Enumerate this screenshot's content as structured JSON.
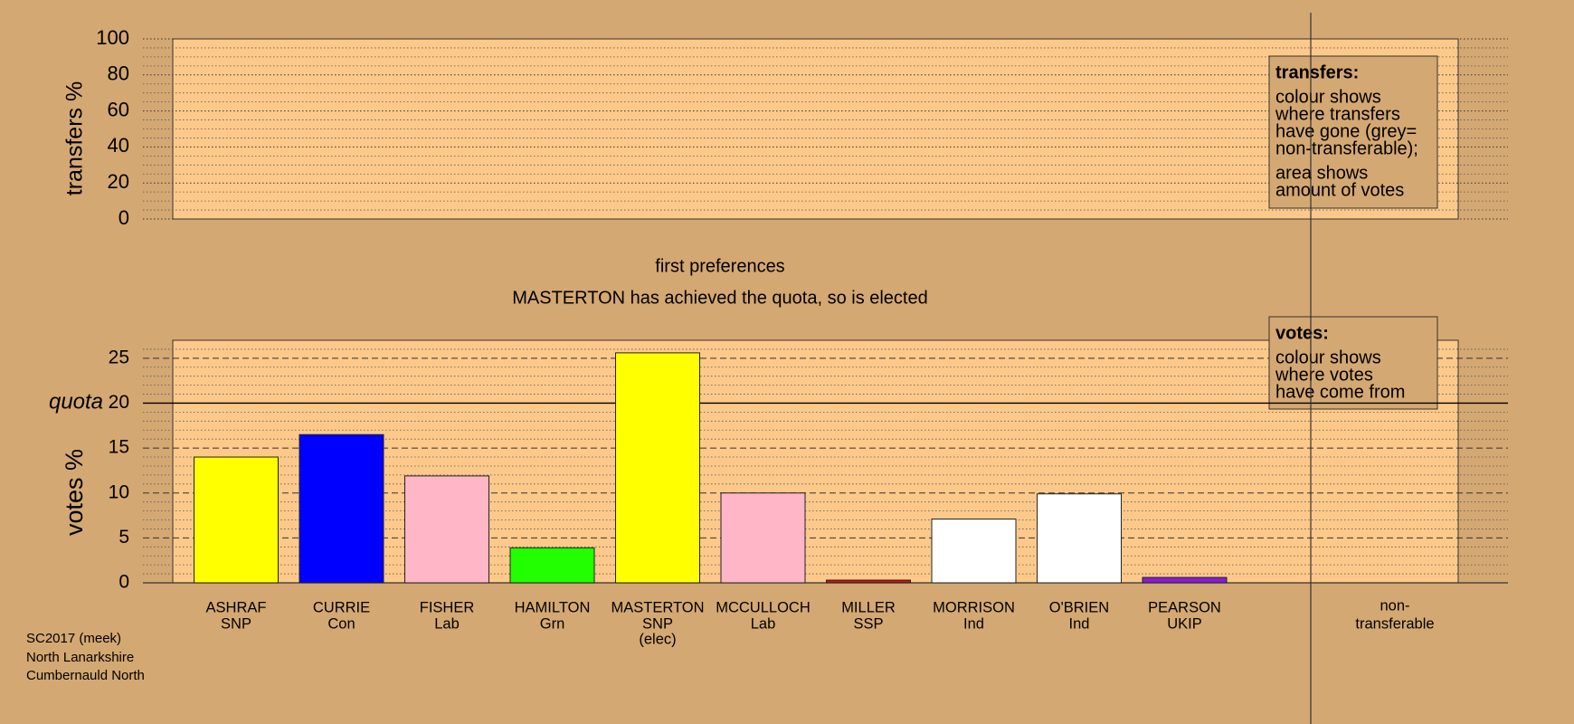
{
  "chart_data": [
    {
      "type": "area",
      "ylabel": "transfers %",
      "ylim": [
        0,
        100
      ],
      "yticks": [
        0,
        20,
        40,
        60,
        80,
        100
      ],
      "minor_grid": [
        5,
        10,
        15,
        25,
        30,
        35,
        45,
        50,
        55,
        65,
        70,
        75,
        85,
        90,
        95
      ],
      "legend_title": "transfers:",
      "legend_lines": [
        "colour shows",
        "where transfers",
        "have gone (grey=",
        "non-transferable);",
        "area shows",
        "amount of votes"
      ]
    },
    {
      "type": "bar",
      "title": "first preferences",
      "subtitle": "MASTERTON has achieved the quota, so is elected",
      "ylabel": "votes %",
      "ylim": [
        0,
        27
      ],
      "yticks": [
        0,
        5,
        10,
        15,
        20,
        25
      ],
      "minor_grid": [
        1,
        2,
        3,
        4,
        6,
        7,
        8,
        9,
        11,
        12,
        13,
        14,
        16,
        17,
        18,
        19,
        21,
        22,
        23,
        24,
        26
      ],
      "quota": 20,
      "quota_label": "quota",
      "categories": [
        "ASHRAF",
        "CURRIE",
        "FISHER",
        "HAMILTON",
        "MASTERTON",
        "MCCULLOCH",
        "MILLER",
        "MORRISON",
        "O'BRIEN",
        "PEARSON"
      ],
      "parties": [
        "SNP",
        "Con",
        "Lab",
        "Grn",
        "SNP",
        "Lab",
        "SSP",
        "Ind",
        "Ind",
        "UKIP"
      ],
      "notes": [
        null,
        null,
        null,
        null,
        "(elec)",
        null,
        null,
        null,
        null,
        null
      ],
      "values": [
        14.0,
        16.5,
        11.9,
        3.9,
        25.6,
        10.0,
        0.3,
        7.1,
        9.9,
        0.6
      ],
      "colors": [
        "#ffff00",
        "#0000ff",
        "#ffb6c6",
        "#22ff00",
        "#ffff00",
        "#ffb6c6",
        "#cc1111",
        "#ffffff",
        "#ffffff",
        "#8a1ad8"
      ],
      "nontransferable_label": [
        "non-",
        "transferable"
      ],
      "legend_title": "votes:",
      "legend_lines": [
        "colour shows",
        "where votes",
        "have come from"
      ]
    }
  ],
  "footer": [
    "SC2017 (meek)",
    "North Lanarkshire",
    "Cumbernauld North"
  ]
}
